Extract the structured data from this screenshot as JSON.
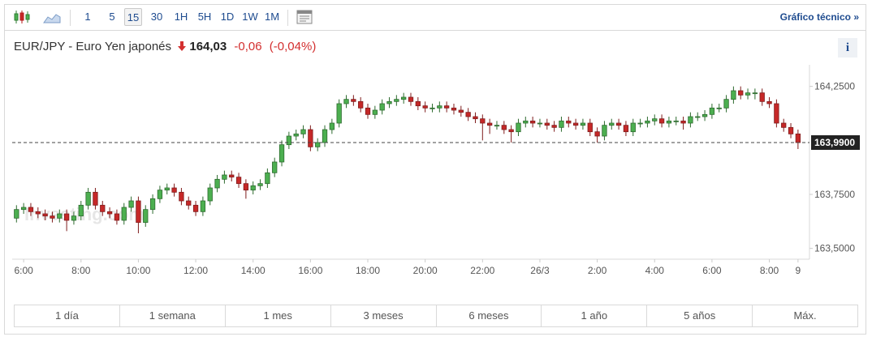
{
  "toolbar": {
    "intervals": [
      "1",
      "5",
      "15",
      "30",
      "1H",
      "5H",
      "1D",
      "1W",
      "1M"
    ],
    "selected_index": 2,
    "technical_link": "Gráfico técnico »"
  },
  "header": {
    "symbol": "EUR/JPY - Euro Yen japonés",
    "price": "164,03",
    "change": "-0,06",
    "change_percent": "(-0,04%)",
    "info": "i"
  },
  "chart_data": {
    "type": "candlestick",
    "watermark": "Investing.com",
    "up_color": "#4caf50",
    "down_color": "#c62828",
    "x": [
      5.75,
      6,
      6.25,
      6.5,
      6.75,
      7,
      7.25,
      7.5,
      7.75,
      8,
      8.25,
      8.5,
      8.75,
      9,
      9.25,
      9.5,
      9.75,
      10,
      10.25,
      10.5,
      10.75,
      11,
      11.25,
      11.5,
      11.75,
      12,
      12.25,
      12.5,
      12.75,
      13,
      13.25,
      13.5,
      13.75,
      14,
      14.25,
      14.5,
      14.75,
      15,
      15.25,
      15.5,
      15.75,
      16,
      16.25,
      16.5,
      16.75,
      17,
      17.25,
      17.5,
      17.75,
      18,
      18.25,
      18.5,
      18.75,
      19,
      19.25,
      19.5,
      19.75,
      20,
      20.25,
      20.5,
      20.75,
      21,
      21.25,
      21.5,
      21.75,
      22,
      22.25,
      22.5,
      22.75,
      23,
      23.25,
      23.5,
      23.75,
      24,
      24.25,
      24.5,
      24.75,
      25,
      25.25,
      25.5,
      25.75,
      26,
      26.25,
      26.5,
      26.75,
      27,
      27.25,
      27.5,
      27.75,
      28,
      28.25,
      28.5,
      28.75,
      29,
      29.25,
      29.5,
      29.75,
      30,
      30.25,
      30.5,
      30.75,
      31,
      31.25,
      31.5,
      31.75,
      32,
      32.25,
      32.5,
      32.75,
      33
    ],
    "open": [
      163.64,
      163.68,
      163.69,
      163.67,
      163.66,
      163.65,
      163.64,
      163.66,
      163.63,
      163.65,
      163.7,
      163.76,
      163.7,
      163.67,
      163.66,
      163.63,
      163.69,
      163.72,
      163.62,
      163.68,
      163.73,
      163.77,
      163.78,
      163.76,
      163.72,
      163.7,
      163.67,
      163.72,
      163.78,
      163.82,
      163.84,
      163.83,
      163.8,
      163.77,
      163.79,
      163.8,
      163.85,
      163.9,
      163.98,
      164.02,
      164.03,
      164.05,
      163.97,
      163.99,
      164.05,
      164.08,
      164.17,
      164.19,
      164.18,
      164.15,
      164.12,
      164.14,
      164.17,
      164.18,
      164.19,
      164.2,
      164.18,
      164.16,
      164.15,
      164.15,
      164.16,
      164.15,
      164.14,
      164.13,
      164.11,
      164.1,
      164.08,
      164.07,
      164.07,
      164.05,
      164.04,
      164.08,
      164.09,
      164.08,
      164.08,
      164.07,
      164.06,
      164.09,
      164.08,
      164.07,
      164.08,
      164.04,
      164.02,
      164.07,
      164.08,
      164.07,
      164.04,
      164.08,
      164.08,
      164.09,
      164.1,
      164.08,
      164.09,
      164.09,
      164.08,
      164.11,
      164.11,
      164.12,
      164.15,
      164.15,
      164.19,
      164.23,
      164.21,
      164.22,
      164.22,
      164.18,
      164.17,
      164.08,
      164.06,
      164.03
    ],
    "high": [
      163.7,
      163.71,
      163.71,
      163.69,
      163.68,
      163.67,
      163.68,
      163.68,
      163.67,
      163.72,
      163.78,
      163.78,
      163.72,
      163.69,
      163.68,
      163.71,
      163.74,
      163.74,
      163.7,
      163.75,
      163.79,
      163.8,
      163.8,
      163.78,
      163.74,
      163.72,
      163.74,
      163.8,
      163.84,
      163.86,
      163.86,
      163.85,
      163.82,
      163.81,
      163.82,
      163.87,
      163.92,
      164.0,
      164.04,
      164.05,
      164.07,
      164.07,
      164.01,
      164.07,
      164.1,
      164.19,
      164.21,
      164.21,
      164.2,
      164.17,
      164.16,
      164.19,
      164.2,
      164.21,
      164.22,
      164.22,
      164.2,
      164.18,
      164.17,
      164.18,
      164.18,
      164.17,
      164.16,
      164.15,
      164.13,
      164.12,
      164.1,
      164.09,
      164.09,
      164.07,
      164.1,
      164.11,
      164.11,
      164.1,
      164.1,
      164.09,
      164.11,
      164.11,
      164.1,
      164.1,
      164.1,
      164.06,
      164.09,
      164.1,
      164.1,
      164.09,
      164.1,
      164.1,
      164.11,
      164.12,
      164.12,
      164.11,
      164.11,
      164.11,
      164.13,
      164.13,
      164.14,
      164.17,
      164.17,
      164.21,
      164.25,
      164.25,
      164.24,
      164.24,
      164.24,
      164.2,
      164.19,
      164.1,
      164.08,
      164.05
    ],
    "low": [
      163.62,
      163.66,
      163.65,
      163.64,
      163.63,
      163.62,
      163.62,
      163.58,
      163.61,
      163.63,
      163.68,
      163.68,
      163.65,
      163.64,
      163.61,
      163.61,
      163.67,
      163.57,
      163.6,
      163.66,
      163.71,
      163.75,
      163.74,
      163.7,
      163.68,
      163.65,
      163.65,
      163.7,
      163.76,
      163.8,
      163.81,
      163.78,
      163.73,
      163.75,
      163.77,
      163.78,
      163.83,
      163.88,
      163.96,
      164.0,
      164.01,
      163.95,
      163.95,
      163.97,
      164.03,
      164.06,
      164.15,
      164.16,
      164.13,
      164.1,
      164.1,
      164.12,
      164.15,
      164.16,
      164.17,
      164.16,
      164.14,
      164.13,
      164.13,
      164.13,
      164.13,
      164.12,
      164.11,
      164.09,
      164.08,
      164.0,
      164.03,
      164.05,
      164.03,
      163.99,
      164.02,
      164.06,
      164.06,
      164.06,
      164.05,
      164.04,
      164.04,
      164.06,
      164.05,
      164.05,
      164.02,
      163.99,
      164.0,
      164.05,
      164.05,
      164.02,
      164.02,
      164.06,
      164.06,
      164.07,
      164.06,
      164.06,
      164.07,
      164.05,
      164.06,
      164.09,
      164.09,
      164.1,
      164.13,
      164.13,
      164.17,
      164.19,
      164.19,
      164.19,
      164.16,
      164.15,
      164.06,
      164.04,
      164.01,
      163.96
    ],
    "close": [
      163.68,
      163.69,
      163.67,
      163.66,
      163.65,
      163.64,
      163.66,
      163.63,
      163.65,
      163.7,
      163.76,
      163.7,
      163.67,
      163.66,
      163.63,
      163.69,
      163.72,
      163.62,
      163.68,
      163.73,
      163.77,
      163.78,
      163.76,
      163.72,
      163.7,
      163.67,
      163.72,
      163.78,
      163.82,
      163.84,
      163.83,
      163.8,
      163.77,
      163.79,
      163.8,
      163.85,
      163.9,
      163.98,
      164.02,
      164.03,
      164.05,
      163.97,
      163.99,
      164.05,
      164.08,
      164.17,
      164.19,
      164.18,
      164.15,
      164.12,
      164.14,
      164.17,
      164.18,
      164.19,
      164.2,
      164.18,
      164.16,
      164.15,
      164.15,
      164.16,
      164.15,
      164.14,
      164.13,
      164.11,
      164.1,
      164.08,
      164.07,
      164.07,
      164.05,
      164.04,
      164.08,
      164.09,
      164.08,
      164.08,
      164.07,
      164.06,
      164.09,
      164.08,
      164.07,
      164.08,
      164.04,
      164.02,
      164.07,
      164.08,
      164.07,
      164.04,
      164.08,
      164.08,
      164.09,
      164.1,
      164.08,
      164.09,
      164.09,
      164.08,
      164.11,
      164.11,
      164.12,
      164.15,
      164.15,
      164.19,
      164.23,
      164.21,
      164.22,
      164.22,
      164.18,
      164.17,
      164.08,
      164.06,
      164.03,
      163.99
    ],
    "xlim": [
      5.6,
      33.4
    ],
    "xticks": [
      {
        "value": 6,
        "label": "6:00"
      },
      {
        "value": 8,
        "label": "8:00"
      },
      {
        "value": 10,
        "label": "10:00"
      },
      {
        "value": 12,
        "label": "12:00"
      },
      {
        "value": 14,
        "label": "14:00"
      },
      {
        "value": 16,
        "label": "16:00"
      },
      {
        "value": 18,
        "label": "18:00"
      },
      {
        "value": 20,
        "label": "20:00"
      },
      {
        "value": 22,
        "label": "22:00"
      },
      {
        "value": 24,
        "label": "26/3"
      },
      {
        "value": 26,
        "label": "2:00"
      },
      {
        "value": 28,
        "label": "4:00"
      },
      {
        "value": 30,
        "label": "6:00"
      },
      {
        "value": 32,
        "label": "8:00"
      },
      {
        "value": 33,
        "label": "9"
      }
    ],
    "ylim": [
      163.45,
      164.35
    ],
    "yticks": [
      {
        "value": 164.25,
        "label": "164,2500"
      },
      {
        "value": 163.75,
        "label": "163,7500"
      },
      {
        "value": 163.5,
        "label": "163,5000"
      }
    ],
    "last_price": {
      "value": 163.99,
      "label": "163,9900"
    }
  },
  "ranges": [
    "1 día",
    "1 semana",
    "1 mes",
    "3 meses",
    "6 meses",
    "1 año",
    "5 años",
    "Máx."
  ]
}
